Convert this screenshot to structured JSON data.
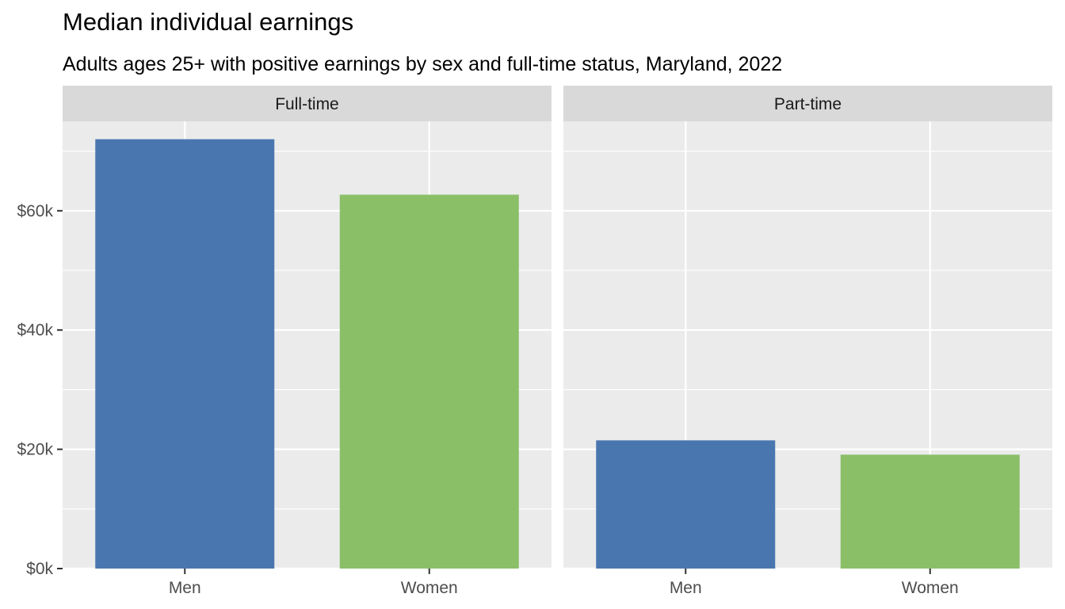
{
  "chart_data": {
    "type": "bar",
    "title": "Median individual earnings",
    "subtitle": "Adults ages 25+ with positive earnings by sex and full-time status, Maryland, 2022",
    "xlabel": "",
    "ylabel": "",
    "categories": [
      "Men",
      "Women"
    ],
    "facets": [
      {
        "label": "Full-time",
        "values": [
          72000,
          62700
        ]
      },
      {
        "label": "Part-time",
        "values": [
          21500,
          19100
        ]
      }
    ],
    "ylim": [
      0,
      75000
    ],
    "y_ticks": [
      0,
      20000,
      40000,
      60000
    ],
    "y_tick_labels": [
      "$0k",
      "$20k",
      "$40k",
      "$60k"
    ],
    "colors": {
      "Men": "#4a76b0",
      "Women": "#8abf68",
      "panel_background": "#ebebeb",
      "strip_background": "#d9d9d9",
      "grid": "#ffffff"
    },
    "grid": true,
    "legend": "none"
  }
}
